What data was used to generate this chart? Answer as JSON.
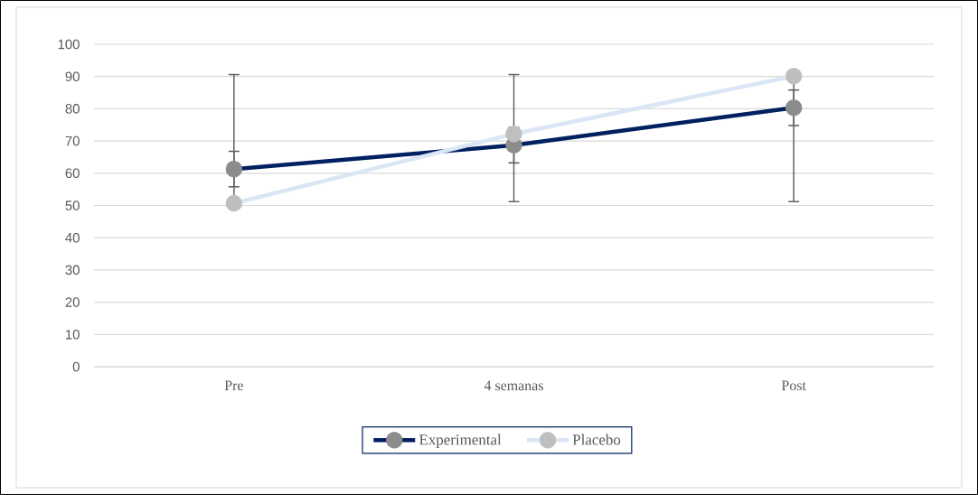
{
  "chart_data": {
    "type": "line",
    "categories": [
      "Pre",
      "4 semanas",
      "Post"
    ],
    "series": [
      {
        "name": "Experimental",
        "color": "#002060",
        "values": [
          61.3,
          68.7,
          80.3
        ],
        "errors": [
          5.5,
          5.5,
          5.5
        ]
      },
      {
        "name": "Placebo",
        "color": "#dae6f5",
        "values": [
          50.7,
          72.2,
          90.1
        ],
        "errors": [
          [
            50.7,
            90.6
          ],
          [
            51.2,
            90.6
          ],
          [
            51.2,
            90.1
          ]
        ]
      }
    ],
    "ylim": [
      0,
      100
    ],
    "yticks": [
      0,
      10,
      20,
      30,
      40,
      50,
      60,
      70,
      80,
      90,
      100
    ],
    "grid": "y",
    "legend": "bottom",
    "marker": "circle",
    "line_style": "solid"
  }
}
